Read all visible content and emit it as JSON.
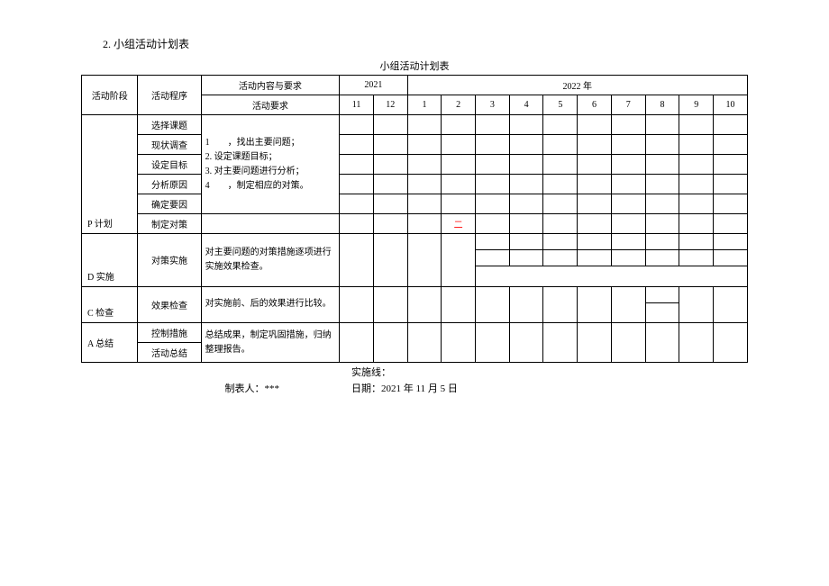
{
  "section_title": "2. 小组活动计划表",
  "table_title": "小组活动计划表",
  "header": {
    "phase": "活动阶段",
    "procedure": "活动程序",
    "content_req": "活动内容与要求",
    "req": "活动要求",
    "year2021": "2021",
    "year2022": "2022 年",
    "months": [
      "11",
      "12",
      "1",
      "2",
      "3",
      "4",
      "5",
      "6",
      "7",
      "8",
      "9",
      "10"
    ]
  },
  "phases": {
    "p": "P 计划",
    "d": "D 实施",
    "c": "C 检查",
    "a": "A 总结"
  },
  "procedures": {
    "p1": "选择课题",
    "p2": "现状调查",
    "p3": "设定目标",
    "p4": "分析原因",
    "p5": "确定要因",
    "p6": "制定对策",
    "d1": "对策实施",
    "c1": "效果检查",
    "a1": "控制措施",
    "a2": "活动总结"
  },
  "requirements": {
    "p": "1　　，找出主要问题；\n2. 设定课题目标；\n3. 对主要问题进行分析；\n4　　，制定相应的对策。",
    "d": "对主要问题的对策措施逐项进行实施效果检查。",
    "c": "对实施前、后的效果进行比较。",
    "a": "总结成果，制定巩固措施，归纳整理报告。"
  },
  "red_mark": "二",
  "legend": "实施线：",
  "footer": {
    "author_label": "制表人：***",
    "date": "日期：2021 年 11 月 5 日"
  }
}
